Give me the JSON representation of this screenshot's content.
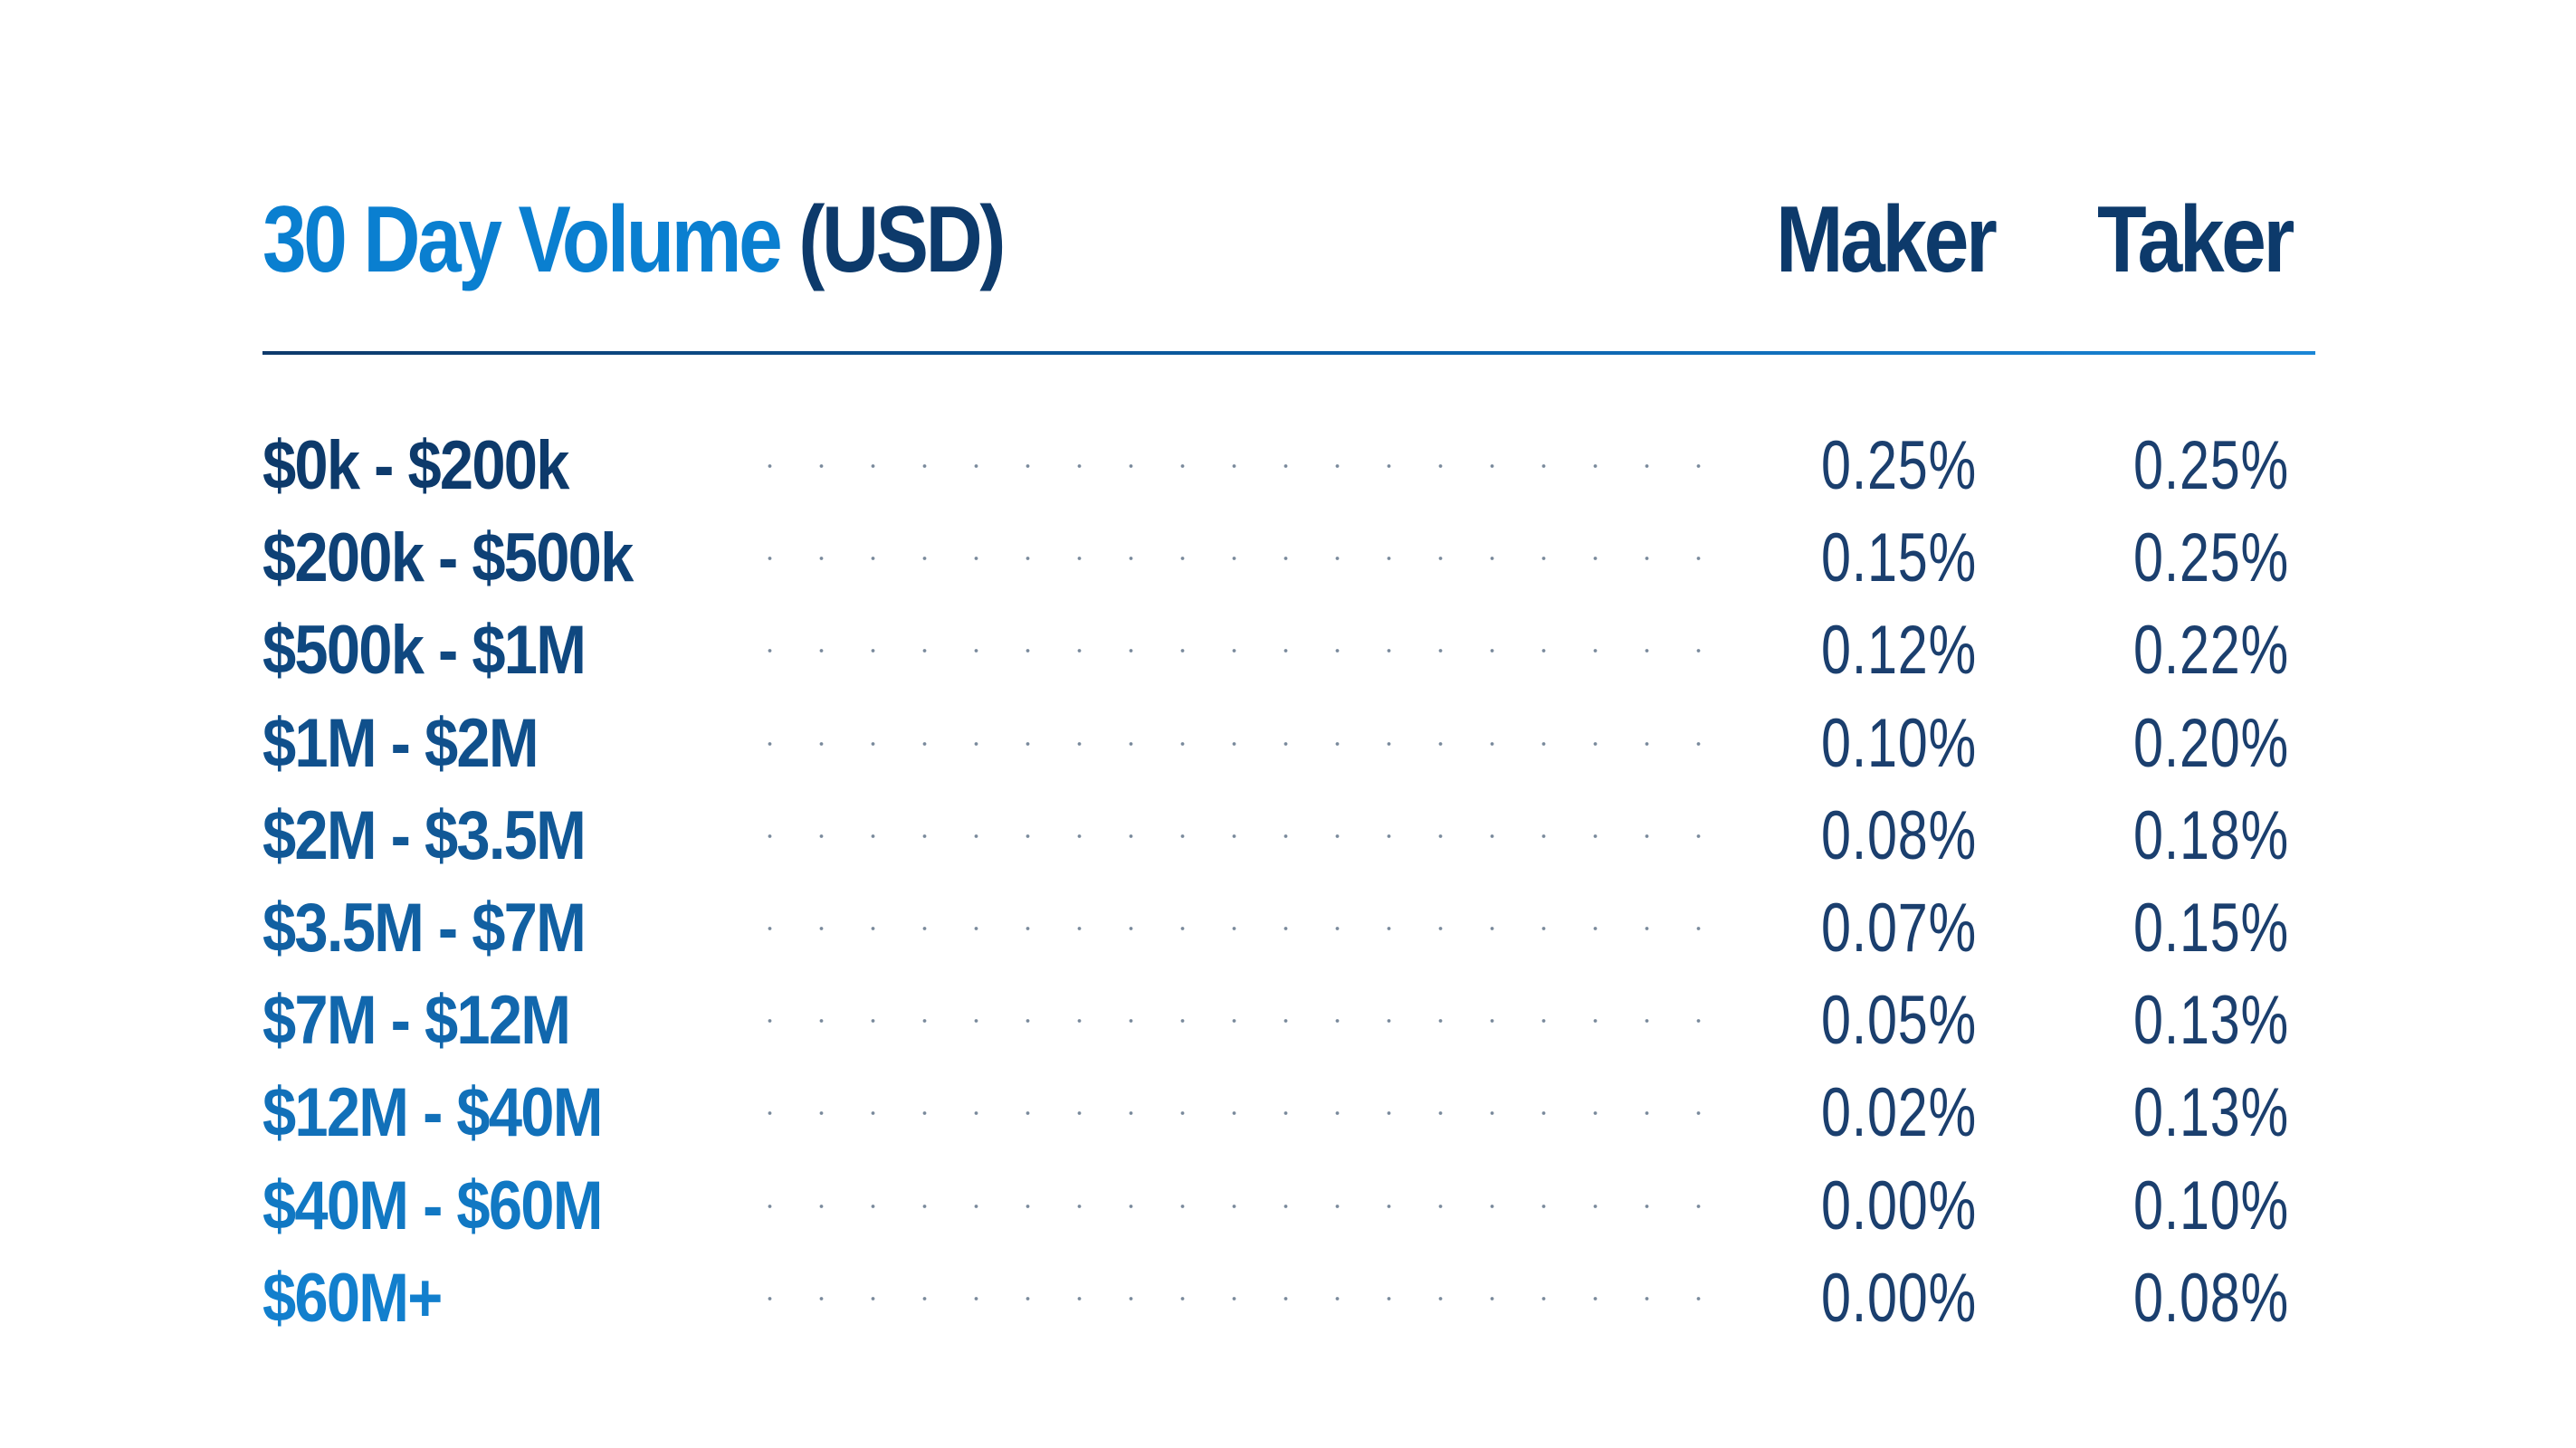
{
  "header": {
    "title_part1": "30 Day Volume",
    "title_part2": "(USD)",
    "maker_label": "Maker",
    "taker_label": "Taker"
  },
  "colors": {
    "accent_blue": "#0a7fd0",
    "dark_navy": "#0d3a6b",
    "percent_text": "#1b3f6e"
  },
  "tiers": [
    {
      "range": "$0k - $200k",
      "maker": "0.25%",
      "taker": "0.25%",
      "color": "#0d3a6b"
    },
    {
      "range": "$200k - $500k",
      "maker": "0.15%",
      "taker": "0.25%",
      "color": "#0e4176"
    },
    {
      "range": "$500k - $1M",
      "maker": "0.12%",
      "taker": "0.22%",
      "color": "#0f4880"
    },
    {
      "range": "$1M  - $2M",
      "maker": "0.10%",
      "taker": "0.20%",
      "color": "#10508c"
    },
    {
      "range": "$2M - $3.5M",
      "maker": "0.08%",
      "taker": "0.18%",
      "color": "#115896"
    },
    {
      "range": "$3.5M - $7M",
      "maker": "0.07%",
      "taker": "0.15%",
      "color": "#1160a2"
    },
    {
      "range": "$7M - $12M",
      "maker": "0.05%",
      "taker": "0.13%",
      "color": "#1167ad"
    },
    {
      "range": "$12M  - $40M",
      "maker": "0.02%",
      "taker": "0.13%",
      "color": "#1170b9"
    },
    {
      "range": "$40M - $60M",
      "maker": "0.00%",
      "taker": "0.10%",
      "color": "#1178c3"
    },
    {
      "range": "$60M+",
      "maker": "0.00%",
      "taker": "0.08%",
      "color": "#127fcd"
    }
  ]
}
